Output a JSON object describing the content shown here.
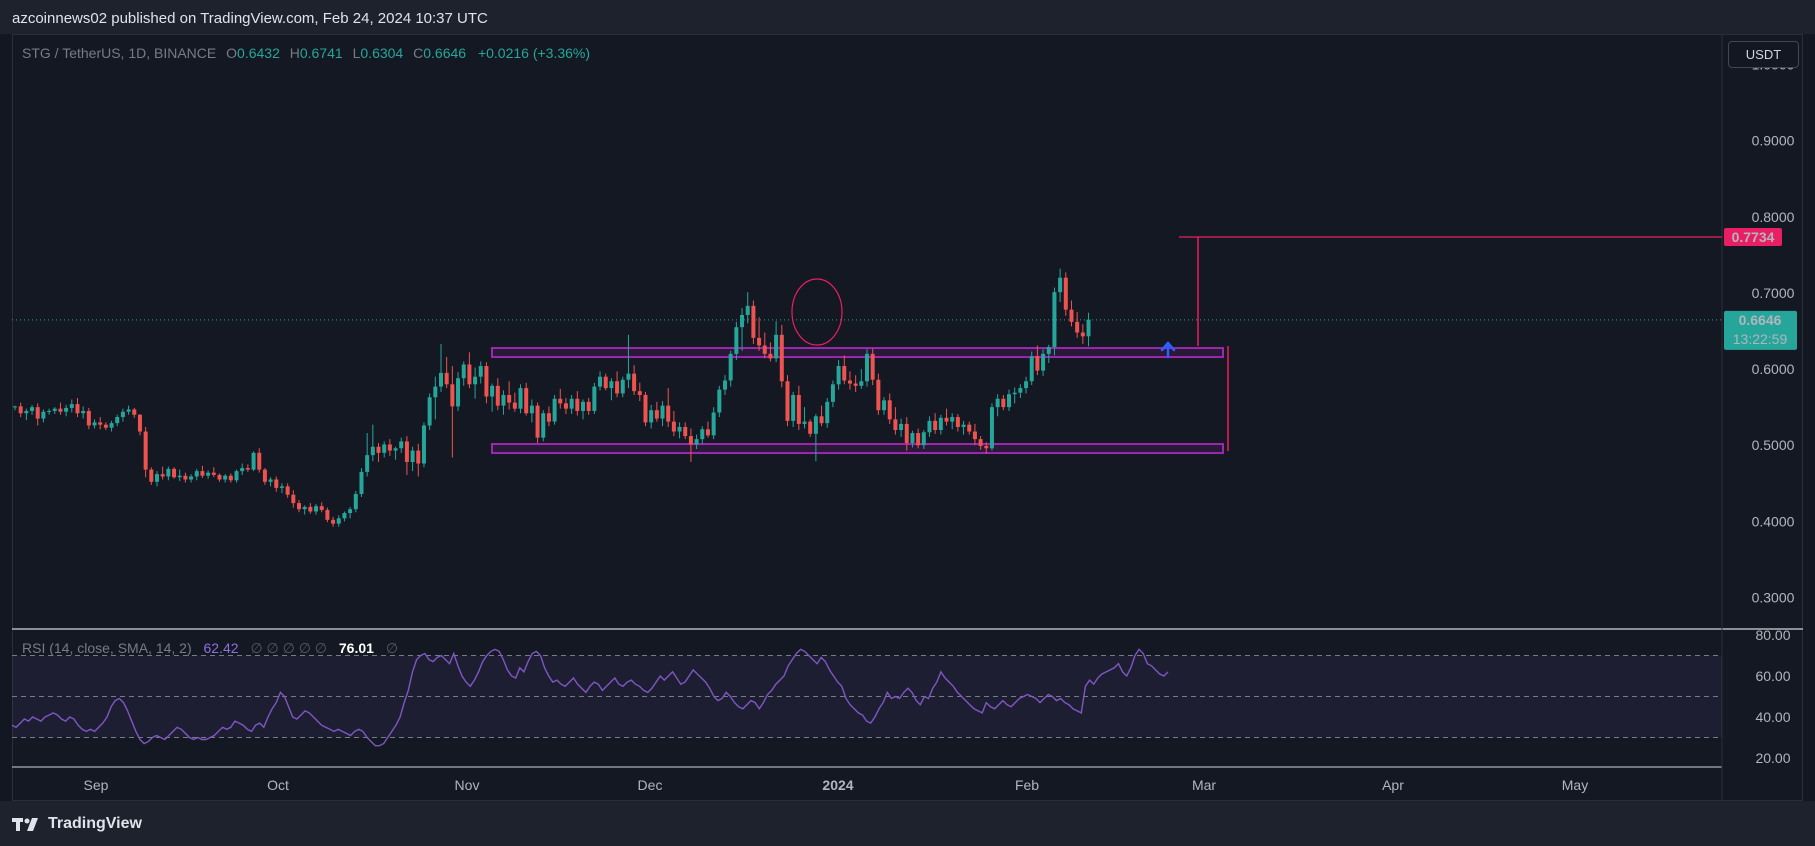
{
  "header": {
    "published": "azcoinnews02 published on TradingView.com, Feb 24, 2024 10:37 UTC"
  },
  "legend": {
    "symbol": "STG / TetherUS, 1D, BINANCE",
    "open_label": "O",
    "open": "0.6432",
    "high_label": "H",
    "high": "0.6741",
    "low_label": "L",
    "low": "0.6304",
    "close_label": "C",
    "close": "0.6646",
    "change": "+0.0216 (+3.36%)"
  },
  "currency_button": "USDT",
  "rsi_legend": {
    "name": "RSI (14, close, SMA, 14, 2)",
    "value": "62.42",
    "placeholders": "∅ ∅ ∅ ∅ ∅",
    "value2": "76.01",
    "placeholder_end": "∅"
  },
  "footer": {
    "brand": "TradingView"
  },
  "colors": {
    "up": "#26a69a",
    "down": "#ef5350",
    "range_box": "#9c27b0",
    "target": "#e91e63",
    "rsi_line": "#7e57c2",
    "arrow": "#2962ff"
  },
  "chart_data": {
    "type": "candlestick",
    "price_scale": {
      "ticks": [
        "1.0000",
        "0.9000",
        "0.8000",
        "0.7000",
        "0.6000",
        "0.5000",
        "0.4000",
        "0.3000"
      ],
      "range": [
        0.26,
        1.04
      ]
    },
    "time_axis": {
      "labels": [
        "Sep",
        "Oct",
        "Nov",
        "Dec",
        "2024",
        "Feb",
        "Mar",
        "Apr",
        "May"
      ],
      "bold": [
        "2024"
      ]
    },
    "last_price": {
      "value": "0.6646",
      "countdown": "13:22:59"
    },
    "target_label": {
      "value": "0.7734"
    },
    "range_box": {
      "top": 0.625,
      "bottom": 0.495
    },
    "series": [
      [
        0.551,
        0.552,
        0.546,
        0.551
      ],
      [
        0.551,
        0.556,
        0.537,
        0.542
      ],
      [
        0.542,
        0.548,
        0.533,
        0.545
      ],
      [
        0.545,
        0.553,
        0.54,
        0.55
      ],
      [
        0.55,
        0.555,
        0.526,
        0.535
      ],
      [
        0.535,
        0.547,
        0.53,
        0.544
      ],
      [
        0.544,
        0.548,
        0.54,
        0.545
      ],
      [
        0.545,
        0.55,
        0.541,
        0.548
      ],
      [
        0.548,
        0.556,
        0.54,
        0.544
      ],
      [
        0.544,
        0.553,
        0.538,
        0.549
      ],
      [
        0.549,
        0.56,
        0.543,
        0.554
      ],
      [
        0.554,
        0.562,
        0.537,
        0.542
      ],
      [
        0.542,
        0.551,
        0.535,
        0.545
      ],
      [
        0.545,
        0.549,
        0.521,
        0.526
      ],
      [
        0.526,
        0.534,
        0.522,
        0.53
      ],
      [
        0.53,
        0.537,
        0.521,
        0.527
      ],
      [
        0.527,
        0.53,
        0.52,
        0.523
      ],
      [
        0.523,
        0.532,
        0.518,
        0.529
      ],
      [
        0.529,
        0.54,
        0.525,
        0.537
      ],
      [
        0.537,
        0.548,
        0.531,
        0.544
      ],
      [
        0.544,
        0.552,
        0.54,
        0.547
      ],
      [
        0.547,
        0.549,
        0.536,
        0.54
      ],
      [
        0.54,
        0.541,
        0.513,
        0.518
      ],
      [
        0.518,
        0.524,
        0.458,
        0.468
      ],
      [
        0.468,
        0.471,
        0.448,
        0.452
      ],
      [
        0.452,
        0.466,
        0.446,
        0.462
      ],
      [
        0.462,
        0.472,
        0.455,
        0.459
      ],
      [
        0.459,
        0.472,
        0.454,
        0.469
      ],
      [
        0.469,
        0.471,
        0.456,
        0.458
      ],
      [
        0.458,
        0.468,
        0.453,
        0.46
      ],
      [
        0.46,
        0.464,
        0.451,
        0.455
      ],
      [
        0.455,
        0.462,
        0.451,
        0.459
      ],
      [
        0.459,
        0.469,
        0.454,
        0.466
      ],
      [
        0.466,
        0.473,
        0.457,
        0.46
      ],
      [
        0.46,
        0.467,
        0.456,
        0.464
      ],
      [
        0.464,
        0.471,
        0.458,
        0.461
      ],
      [
        0.461,
        0.463,
        0.452,
        0.455
      ],
      [
        0.455,
        0.462,
        0.451,
        0.46
      ],
      [
        0.46,
        0.463,
        0.451,
        0.454
      ],
      [
        0.454,
        0.468,
        0.451,
        0.466
      ],
      [
        0.466,
        0.476,
        0.461,
        0.47
      ],
      [
        0.47,
        0.475,
        0.465,
        0.468
      ],
      [
        0.468,
        0.492,
        0.466,
        0.49
      ],
      [
        0.49,
        0.496,
        0.464,
        0.468
      ],
      [
        0.468,
        0.47,
        0.448,
        0.452
      ],
      [
        0.452,
        0.458,
        0.446,
        0.455
      ],
      [
        0.455,
        0.459,
        0.439,
        0.444
      ],
      [
        0.444,
        0.45,
        0.437,
        0.446
      ],
      [
        0.446,
        0.45,
        0.431,
        0.435
      ],
      [
        0.435,
        0.441,
        0.418,
        0.424
      ],
      [
        0.424,
        0.428,
        0.412,
        0.416
      ],
      [
        0.416,
        0.421,
        0.409,
        0.419
      ],
      [
        0.419,
        0.424,
        0.41,
        0.413
      ],
      [
        0.413,
        0.423,
        0.409,
        0.42
      ],
      [
        0.42,
        0.425,
        0.412,
        0.415
      ],
      [
        0.415,
        0.418,
        0.399,
        0.402
      ],
      [
        0.402,
        0.406,
        0.393,
        0.397
      ],
      [
        0.397,
        0.408,
        0.393,
        0.404
      ],
      [
        0.404,
        0.413,
        0.4,
        0.411
      ],
      [
        0.411,
        0.419,
        0.404,
        0.416
      ],
      [
        0.416,
        0.44,
        0.412,
        0.436
      ],
      [
        0.436,
        0.47,
        0.432,
        0.465
      ],
      [
        0.465,
        0.516,
        0.459,
        0.487
      ],
      [
        0.487,
        0.527,
        0.479,
        0.498
      ],
      [
        0.498,
        0.503,
        0.478,
        0.49
      ],
      [
        0.49,
        0.505,
        0.484,
        0.501
      ],
      [
        0.501,
        0.508,
        0.486,
        0.493
      ],
      [
        0.493,
        0.498,
        0.481,
        0.496
      ],
      [
        0.496,
        0.51,
        0.49,
        0.505
      ],
      [
        0.505,
        0.512,
        0.461,
        0.478
      ],
      [
        0.478,
        0.498,
        0.466,
        0.493
      ],
      [
        0.493,
        0.502,
        0.459,
        0.476
      ],
      [
        0.476,
        0.53,
        0.471,
        0.526
      ],
      [
        0.526,
        0.568,
        0.52,
        0.563
      ],
      [
        0.563,
        0.59,
        0.534,
        0.577
      ],
      [
        0.577,
        0.633,
        0.57,
        0.595
      ],
      [
        0.595,
        0.616,
        0.575,
        0.58
      ],
      [
        0.58,
        0.604,
        0.484,
        0.551
      ],
      [
        0.551,
        0.596,
        0.545,
        0.588
      ],
      [
        0.588,
        0.61,
        0.578,
        0.606
      ],
      [
        0.606,
        0.622,
        0.575,
        0.58
      ],
      [
        0.58,
        0.602,
        0.561,
        0.59
      ],
      [
        0.59,
        0.61,
        0.581,
        0.604
      ],
      [
        0.604,
        0.609,
        0.555,
        0.564
      ],
      [
        0.564,
        0.581,
        0.544,
        0.578
      ],
      [
        0.578,
        0.588,
        0.546,
        0.552
      ],
      [
        0.552,
        0.572,
        0.54,
        0.566
      ],
      [
        0.566,
        0.584,
        0.547,
        0.556
      ],
      [
        0.556,
        0.569,
        0.544,
        0.548
      ],
      [
        0.548,
        0.58,
        0.542,
        0.575
      ],
      [
        0.575,
        0.582,
        0.539,
        0.542
      ],
      [
        0.542,
        0.56,
        0.53,
        0.552
      ],
      [
        0.552,
        0.556,
        0.503,
        0.51
      ],
      [
        0.51,
        0.546,
        0.505,
        0.542
      ],
      [
        0.542,
        0.551,
        0.525,
        0.531
      ],
      [
        0.531,
        0.566,
        0.527,
        0.561
      ],
      [
        0.561,
        0.574,
        0.548,
        0.555
      ],
      [
        0.555,
        0.562,
        0.541,
        0.548
      ],
      [
        0.548,
        0.566,
        0.541,
        0.561
      ],
      [
        0.561,
        0.571,
        0.539,
        0.545
      ],
      [
        0.545,
        0.56,
        0.534,
        0.557
      ],
      [
        0.557,
        0.562,
        0.54,
        0.545
      ],
      [
        0.545,
        0.582,
        0.541,
        0.577
      ],
      [
        0.577,
        0.597,
        0.572,
        0.59
      ],
      [
        0.59,
        0.594,
        0.572,
        0.575
      ],
      [
        0.575,
        0.588,
        0.559,
        0.584
      ],
      [
        0.584,
        0.597,
        0.563,
        0.568
      ],
      [
        0.568,
        0.59,
        0.563,
        0.586
      ],
      [
        0.586,
        0.645,
        0.575,
        0.594
      ],
      [
        0.594,
        0.605,
        0.566,
        0.571
      ],
      [
        0.571,
        0.582,
        0.558,
        0.566
      ],
      [
        0.566,
        0.57,
        0.525,
        0.53
      ],
      [
        0.53,
        0.553,
        0.522,
        0.546
      ],
      [
        0.546,
        0.557,
        0.531,
        0.535
      ],
      [
        0.535,
        0.558,
        0.525,
        0.552
      ],
      [
        0.552,
        0.575,
        0.524,
        0.531
      ],
      [
        0.531,
        0.545,
        0.512,
        0.518
      ],
      [
        0.518,
        0.53,
        0.509,
        0.524
      ],
      [
        0.524,
        0.53,
        0.508,
        0.512
      ],
      [
        0.512,
        0.522,
        0.478,
        0.501
      ],
      [
        0.501,
        0.514,
        0.495,
        0.508
      ],
      [
        0.508,
        0.525,
        0.502,
        0.521
      ],
      [
        0.521,
        0.531,
        0.51,
        0.513
      ],
      [
        0.513,
        0.55,
        0.508,
        0.543
      ],
      [
        0.543,
        0.578,
        0.537,
        0.573
      ],
      [
        0.573,
        0.592,
        0.566,
        0.585
      ],
      [
        0.585,
        0.624,
        0.577,
        0.62
      ],
      [
        0.62,
        0.662,
        0.612,
        0.655
      ],
      [
        0.655,
        0.68,
        0.624,
        0.671
      ],
      [
        0.671,
        0.701,
        0.66,
        0.683
      ],
      [
        0.683,
        0.69,
        0.633,
        0.641
      ],
      [
        0.641,
        0.668,
        0.624,
        0.631
      ],
      [
        0.631,
        0.648,
        0.614,
        0.62
      ],
      [
        0.62,
        0.635,
        0.61,
        0.614
      ],
      [
        0.614,
        0.663,
        0.609,
        0.645
      ],
      [
        0.645,
        0.658,
        0.576,
        0.584
      ],
      [
        0.584,
        0.592,
        0.525,
        0.532
      ],
      [
        0.532,
        0.57,
        0.524,
        0.566
      ],
      [
        0.566,
        0.578,
        0.52,
        0.528
      ],
      [
        0.528,
        0.55,
        0.522,
        0.531
      ],
      [
        0.531,
        0.534,
        0.511,
        0.515
      ],
      [
        0.515,
        0.541,
        0.479,
        0.538
      ],
      [
        0.538,
        0.552,
        0.525,
        0.529
      ],
      [
        0.529,
        0.562,
        0.523,
        0.557
      ],
      [
        0.557,
        0.585,
        0.55,
        0.58
      ],
      [
        0.58,
        0.612,
        0.573,
        0.604
      ],
      [
        0.604,
        0.618,
        0.58,
        0.585
      ],
      [
        0.585,
        0.597,
        0.573,
        0.581
      ],
      [
        0.581,
        0.592,
        0.57,
        0.578
      ],
      [
        0.578,
        0.6,
        0.574,
        0.584
      ],
      [
        0.584,
        0.626,
        0.577,
        0.62
      ],
      [
        0.62,
        0.627,
        0.579,
        0.586
      ],
      [
        0.586,
        0.594,
        0.54,
        0.546
      ],
      [
        0.546,
        0.563,
        0.54,
        0.559
      ],
      [
        0.559,
        0.568,
        0.528,
        0.534
      ],
      [
        0.534,
        0.55,
        0.514,
        0.52
      ],
      [
        0.52,
        0.535,
        0.511,
        0.528
      ],
      [
        0.528,
        0.537,
        0.493,
        0.503
      ],
      [
        0.503,
        0.519,
        0.497,
        0.516
      ],
      [
        0.516,
        0.522,
        0.496,
        0.5
      ],
      [
        0.5,
        0.52,
        0.495,
        0.517
      ],
      [
        0.517,
        0.538,
        0.511,
        0.532
      ],
      [
        0.532,
        0.542,
        0.515,
        0.52
      ],
      [
        0.52,
        0.54,
        0.514,
        0.536
      ],
      [
        0.536,
        0.548,
        0.526,
        0.531
      ],
      [
        0.531,
        0.542,
        0.521,
        0.537
      ],
      [
        0.537,
        0.541,
        0.518,
        0.524
      ],
      [
        0.524,
        0.532,
        0.514,
        0.527
      ],
      [
        0.527,
        0.531,
        0.514,
        0.518
      ],
      [
        0.518,
        0.528,
        0.5,
        0.508
      ],
      [
        0.508,
        0.512,
        0.494,
        0.499
      ],
      [
        0.499,
        0.504,
        0.489,
        0.496
      ],
      [
        0.496,
        0.555,
        0.493,
        0.55
      ],
      [
        0.55,
        0.567,
        0.538,
        0.561
      ],
      [
        0.561,
        0.566,
        0.546,
        0.55
      ],
      [
        0.55,
        0.573,
        0.545,
        0.567
      ],
      [
        0.567,
        0.576,
        0.555,
        0.569
      ],
      [
        0.569,
        0.58,
        0.562,
        0.575
      ],
      [
        0.575,
        0.59,
        0.568,
        0.584
      ],
      [
        0.584,
        0.623,
        0.579,
        0.617
      ],
      [
        0.617,
        0.631,
        0.592,
        0.598
      ],
      [
        0.598,
        0.626,
        0.591,
        0.62
      ],
      [
        0.62,
        0.632,
        0.608,
        0.629
      ],
      [
        0.629,
        0.707,
        0.618,
        0.701
      ],
      [
        0.701,
        0.732,
        0.688,
        0.72
      ],
      [
        0.72,
        0.727,
        0.67,
        0.678
      ],
      [
        0.678,
        0.69,
        0.656,
        0.662
      ],
      [
        0.662,
        0.675,
        0.641,
        0.648
      ],
      [
        0.648,
        0.659,
        0.633,
        0.643
      ],
      [
        0.643,
        0.674,
        0.63,
        0.665
      ]
    ],
    "rsi_scale": {
      "ticks": [
        "80.00",
        "60.00",
        "40.00",
        "20.00"
      ],
      "band": [
        30,
        70
      ]
    },
    "rsi": [
      36,
      35,
      37,
      39,
      38,
      40,
      39,
      38,
      40,
      41,
      42,
      41,
      39,
      38,
      40,
      39,
      36,
      34,
      33,
      34,
      33,
      35,
      37,
      40,
      45,
      48,
      49,
      47,
      43,
      38,
      33,
      29,
      27,
      28,
      30,
      31,
      30,
      29,
      31,
      33,
      35,
      34,
      32,
      30,
      29,
      30,
      29,
      29,
      30,
      31,
      33,
      35,
      34,
      35,
      38,
      37,
      36,
      34,
      33,
      36,
      37,
      35,
      40,
      44,
      47,
      52,
      50,
      45,
      40,
      39,
      41,
      43,
      42,
      40,
      38,
      36,
      35,
      34,
      33,
      34,
      33,
      32,
      31,
      33,
      34,
      33,
      30,
      28,
      26,
      26,
      27,
      30,
      33,
      36,
      40,
      47,
      53,
      62,
      68,
      70,
      71,
      68,
      67,
      69,
      70,
      68,
      66,
      71,
      65,
      60,
      57,
      55,
      58,
      62,
      67,
      70,
      72,
      73,
      72,
      68,
      63,
      60,
      59,
      64,
      62,
      67,
      71,
      72,
      70,
      64,
      60,
      57,
      58,
      56,
      55,
      57,
      59,
      56,
      54,
      52,
      55,
      57,
      56,
      53,
      55,
      57,
      59,
      56,
      55,
      57,
      58,
      56,
      55,
      53,
      52,
      54,
      57,
      60,
      58,
      60,
      62,
      59,
      56,
      57,
      60,
      63,
      61,
      59,
      57,
      54,
      50,
      48,
      49,
      52,
      50,
      47,
      45,
      44,
      46,
      48,
      47,
      44,
      47,
      51,
      53,
      56,
      58,
      60,
      65,
      68,
      71,
      73,
      72,
      70,
      68,
      66,
      69,
      67,
      63,
      60,
      57,
      55,
      49,
      46,
      44,
      42,
      41,
      38,
      37,
      40,
      44,
      47,
      52,
      49,
      50,
      49,
      52,
      54,
      52,
      48,
      46,
      50,
      49,
      54,
      57,
      62,
      59,
      57,
      55,
      52,
      50,
      48,
      46,
      44,
      43,
      42,
      47,
      45,
      44,
      46,
      48,
      46,
      45,
      47,
      49,
      50,
      51,
      50,
      49,
      47,
      49,
      51,
      50,
      48,
      49,
      47,
      46,
      44,
      43,
      42,
      55,
      58,
      56,
      59,
      61,
      62,
      63,
      64,
      66,
      62,
      60,
      64,
      70,
      73,
      71,
      66,
      65,
      63,
      61,
      60,
      62
    ]
  }
}
